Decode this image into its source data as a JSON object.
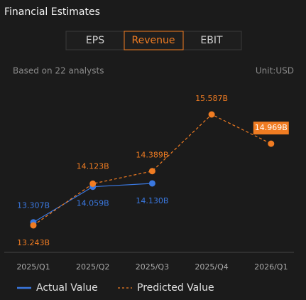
{
  "header": {
    "title": "Financial Estimates",
    "tabs": [
      "EPS",
      "Revenue",
      "EBIT"
    ],
    "note": "Based on 22 analysts",
    "unit": "Unit:USD"
  },
  "chart_data": {
    "type": "line",
    "categories": [
      "2025/Q1",
      "2025/Q2",
      "2025/Q3",
      "2025/Q4",
      "2026/Q1"
    ],
    "series": [
      {
        "name": "Actual Value",
        "color": "#3a78e0",
        "values": [
          13.307,
          14.059,
          14.13,
          null,
          null
        ],
        "value_labels": [
          "13.307B",
          "14.059B",
          "14.130B",
          null,
          null
        ]
      },
      {
        "name": "Predicted Value",
        "color": "#f07c22",
        "values": [
          13.243,
          14.123,
          14.389,
          15.587,
          14.969
        ],
        "value_labels": [
          "13.243B",
          "14.123B",
          "14.389B",
          "15.587B",
          "14.969B"
        ]
      }
    ]
  }
}
